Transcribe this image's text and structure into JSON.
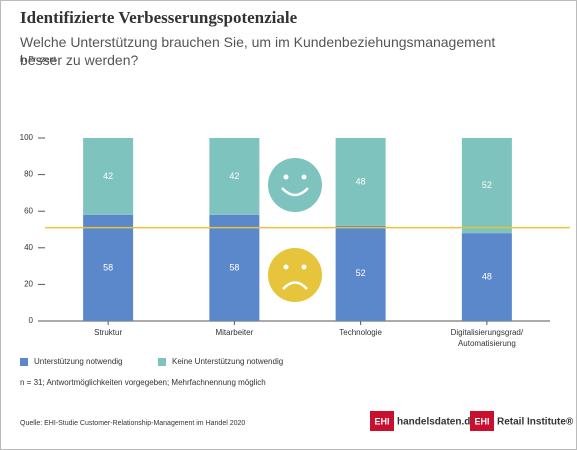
{
  "chart_data": {
    "type": "stacked_bar",
    "title": "Identifizierte Verbesserungspotenziale",
    "subtitle": "Welche Unterstützung brauchen Sie, um im Kundenbeziehungsmanagement besser zu werden?",
    "y_label": "in Prozent",
    "categories": [
      "Struktur",
      "Mitarbeiter",
      "Technologie",
      "Digitalisierungsgrad/ Automatisierung"
    ],
    "series": [
      {
        "name": "Unterstützung notwendig",
        "color": "#5b87cb",
        "values": [
          58,
          58,
          52,
          48
        ]
      },
      {
        "name": "Keine Unterstützung notwendig",
        "color": "#7ec3bd",
        "values": [
          42,
          42,
          48,
          52
        ]
      }
    ],
    "ylim": [
      0,
      100
    ],
    "yticks": [
      0,
      20,
      40,
      60,
      80,
      100
    ],
    "grid": false,
    "reference_line": {
      "value": 51,
      "color": "#e6c53c"
    },
    "note": "n = 31; Antwortmöglichkeiten vorgegeben; Mehrfachnennung möglich",
    "source": "Quelle: EHI-Studie Customer-Relationship-Management im Handel 2020",
    "logos": [
      {
        "badge": "EHI",
        "text": "handelsdaten.de"
      },
      {
        "badge": "EHI",
        "text": "Retail Institute®"
      }
    ]
  }
}
